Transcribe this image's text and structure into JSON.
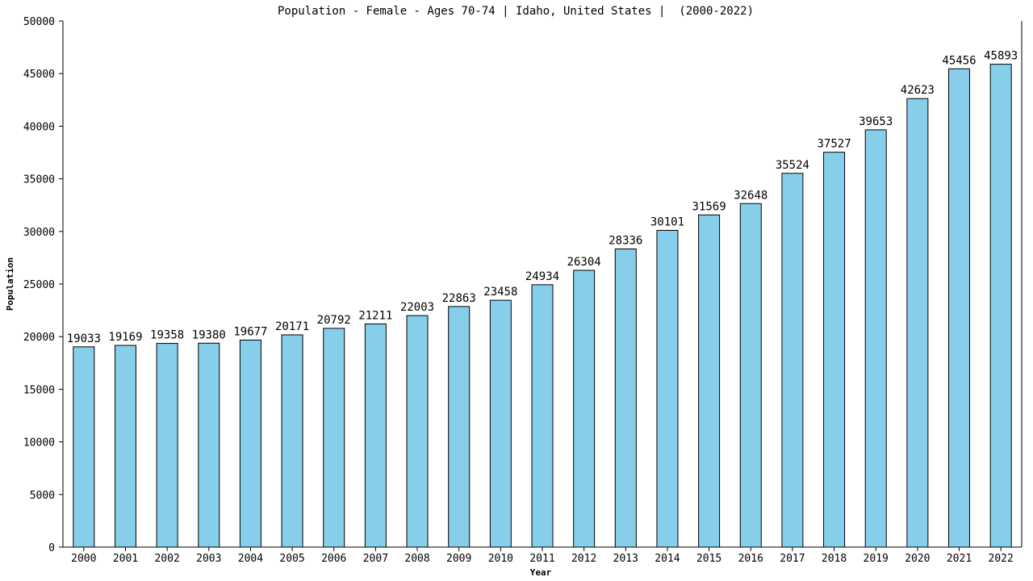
{
  "chart_data": {
    "type": "bar",
    "title": "Population - Female - Ages 70-74 | Idaho, United States |  (2000-2022)",
    "xlabel": "Year",
    "ylabel": "Population",
    "ylim": [
      0,
      50000
    ],
    "yticks": [
      0,
      5000,
      10000,
      15000,
      20000,
      25000,
      30000,
      35000,
      40000,
      45000,
      50000
    ],
    "grid": false,
    "legend": "none",
    "bar_color": "#87ceeb",
    "categories": [
      "2000",
      "2001",
      "2002",
      "2003",
      "2004",
      "2005",
      "2006",
      "2007",
      "2008",
      "2009",
      "2010",
      "2011",
      "2012",
      "2013",
      "2014",
      "2015",
      "2016",
      "2017",
      "2018",
      "2019",
      "2020",
      "2021",
      "2022"
    ],
    "values": [
      19033,
      19169,
      19358,
      19380,
      19677,
      20171,
      20792,
      21211,
      22003,
      22863,
      23458,
      24934,
      26304,
      28336,
      30101,
      31569,
      32648,
      35524,
      37527,
      39653,
      42623,
      45456,
      45893
    ]
  }
}
